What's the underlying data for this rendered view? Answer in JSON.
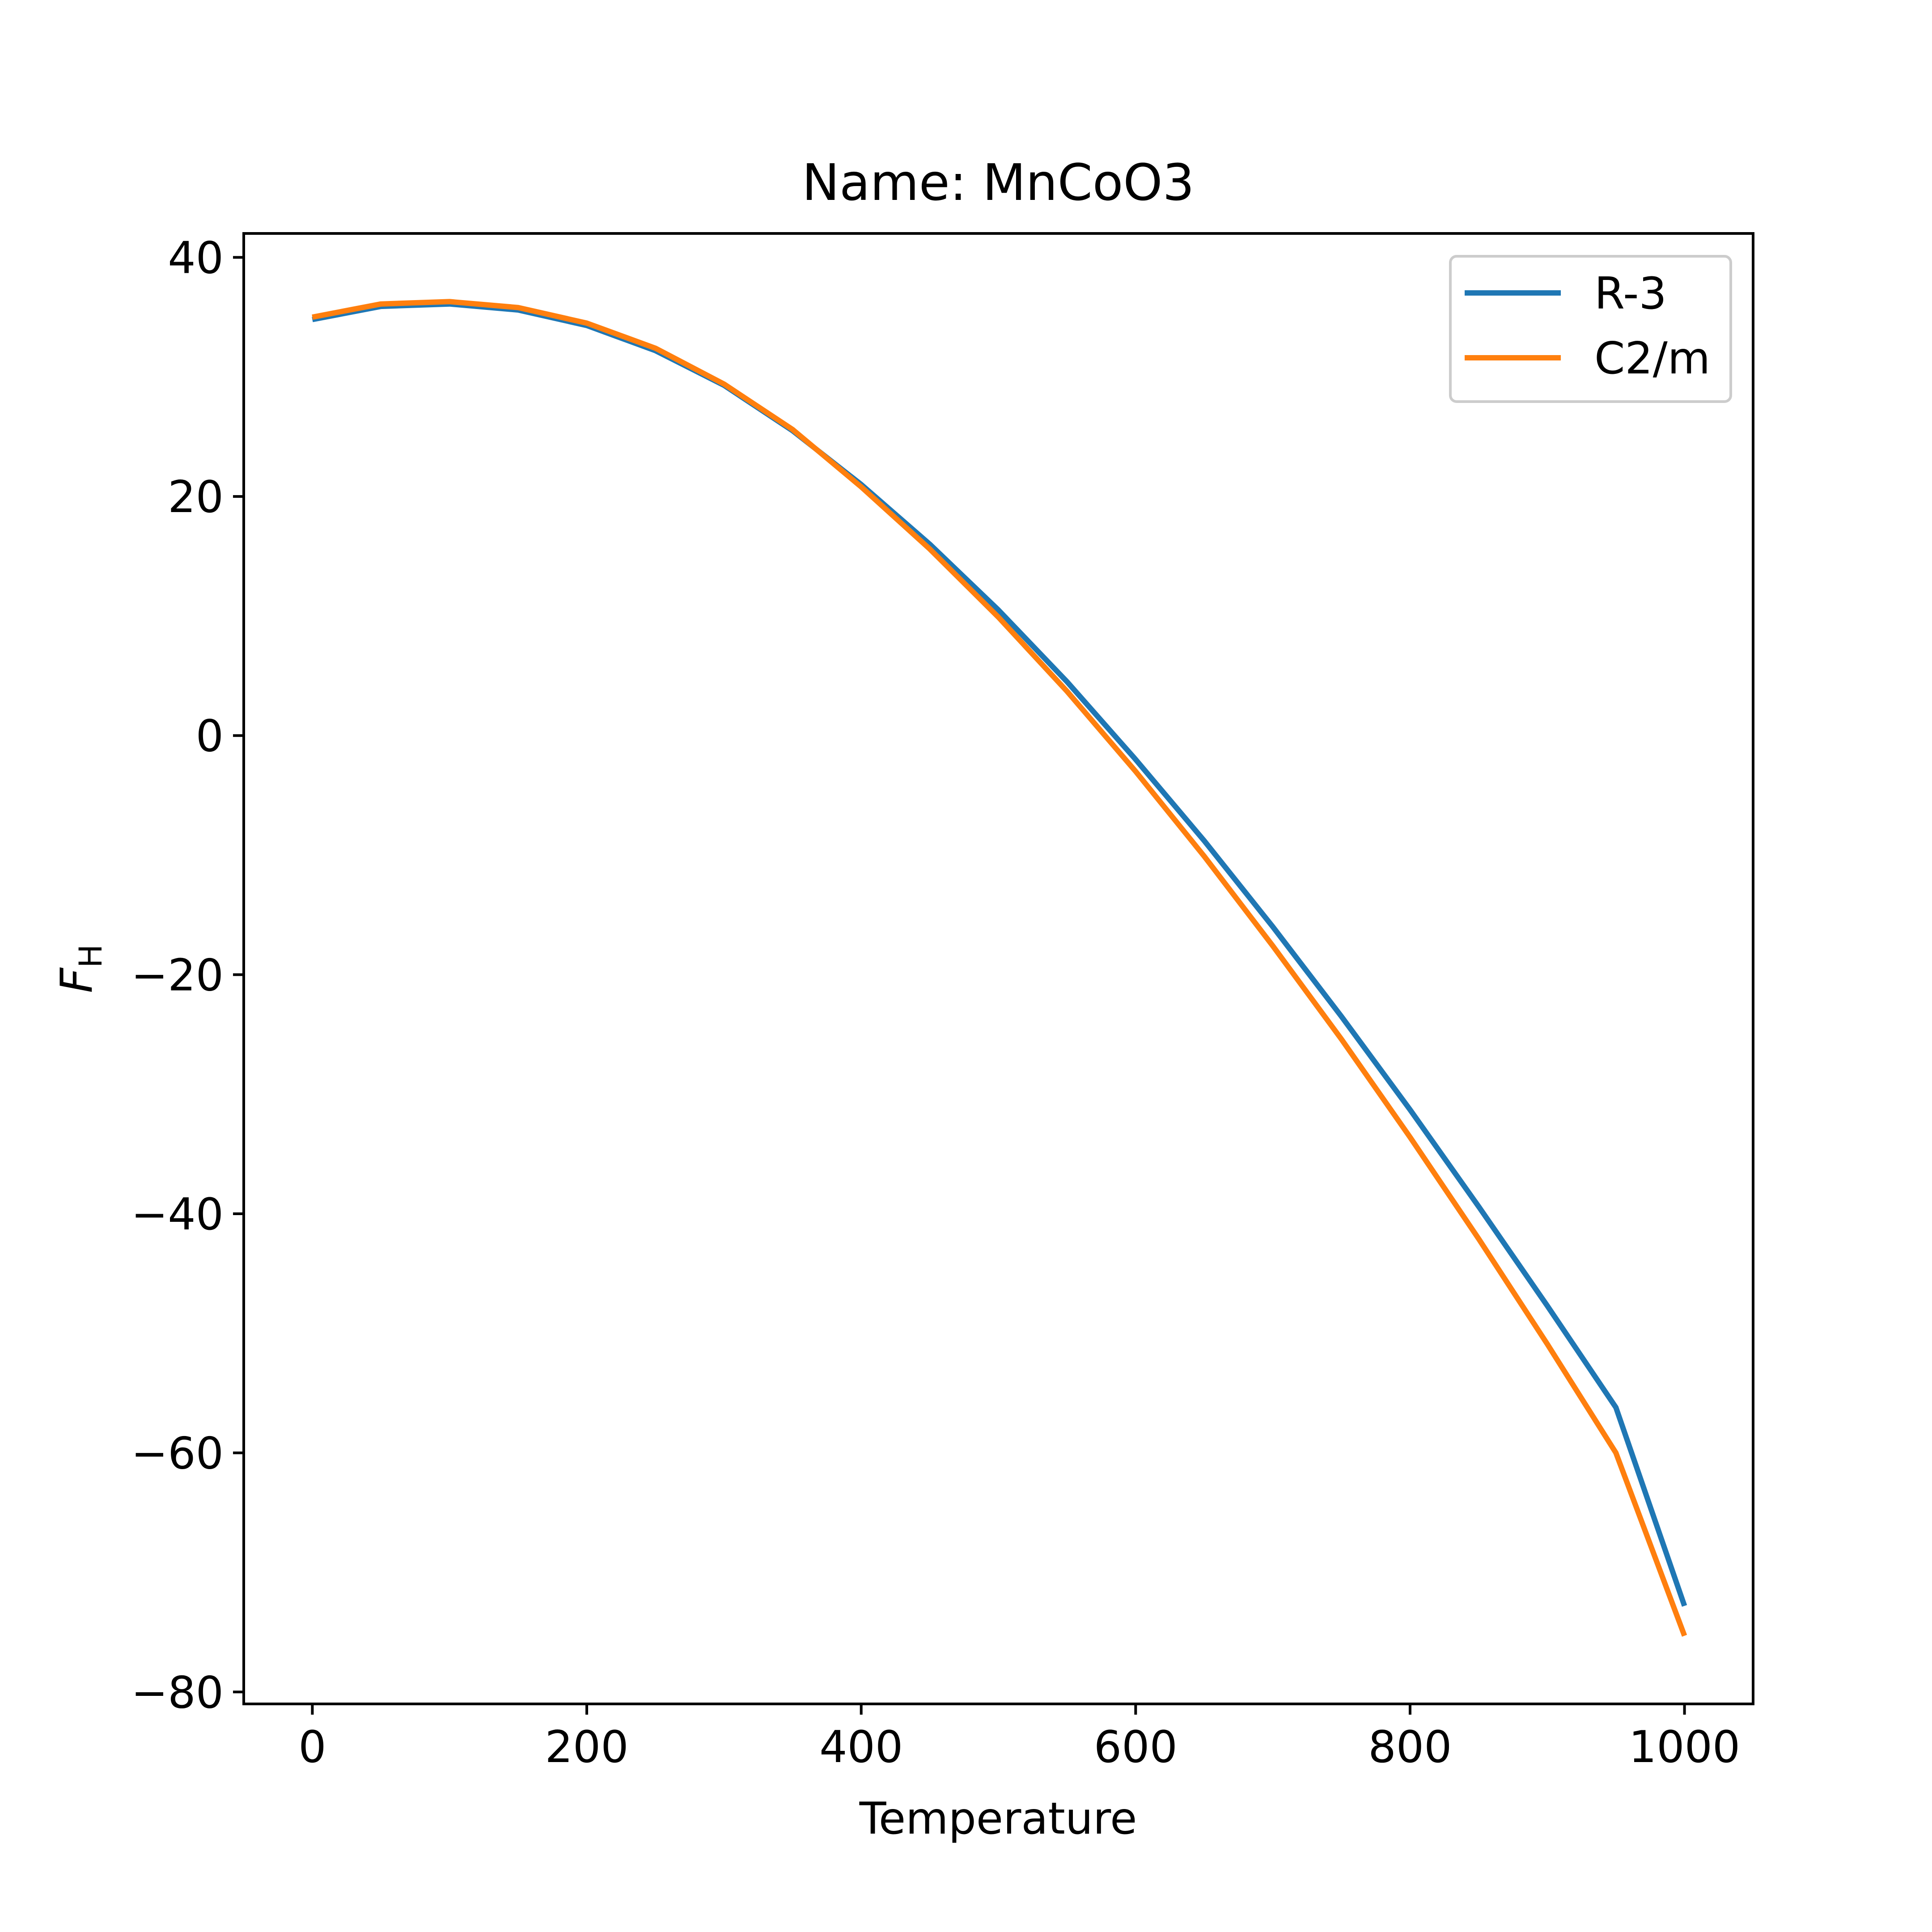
{
  "chart_data": {
    "type": "line",
    "title": "Name: MnCoO3",
    "xlabel": "Temperature",
    "ylabel_main": "F",
    "ylabel_sub": "H",
    "xlim": [
      -50,
      1050
    ],
    "ylim": [
      -81,
      42
    ],
    "xticks": [
      0,
      200,
      400,
      600,
      800,
      1000
    ],
    "yticks": [
      40,
      20,
      0,
      -20,
      -40,
      -60,
      -80
    ],
    "xtick_labels": [
      "0",
      "200",
      "400",
      "600",
      "800",
      "1000"
    ],
    "ytick_labels": [
      "40",
      "20",
      "0",
      "−20",
      "−40",
      "−60",
      "−80"
    ],
    "legend": "top-right",
    "grid": false,
    "x": [
      0,
      50,
      100,
      150,
      200,
      250,
      300,
      350,
      400,
      450,
      500,
      550,
      600,
      650,
      700,
      750,
      800,
      850,
      900,
      950,
      1000
    ],
    "series": [
      {
        "name": "R-3",
        "color": "#1f77b4",
        "values": [
          34.8,
          35.9,
          36.1,
          35.6,
          34.3,
          32.2,
          29.3,
          25.5,
          21.0,
          16.0,
          10.5,
          4.5,
          -2.0,
          -8.8,
          -16.0,
          -23.5,
          -31.3,
          -39.4,
          -47.7,
          -56.2,
          -72.8
        ]
      },
      {
        "name": "C2/m",
        "color": "#ff7f0e",
        "values": [
          35.0,
          36.1,
          36.3,
          35.8,
          34.5,
          32.4,
          29.4,
          25.6,
          20.8,
          15.6,
          9.9,
          3.7,
          -3.0,
          -10.1,
          -17.6,
          -25.4,
          -33.6,
          -42.1,
          -50.9,
          -60.0,
          -75.3
        ]
      }
    ]
  }
}
